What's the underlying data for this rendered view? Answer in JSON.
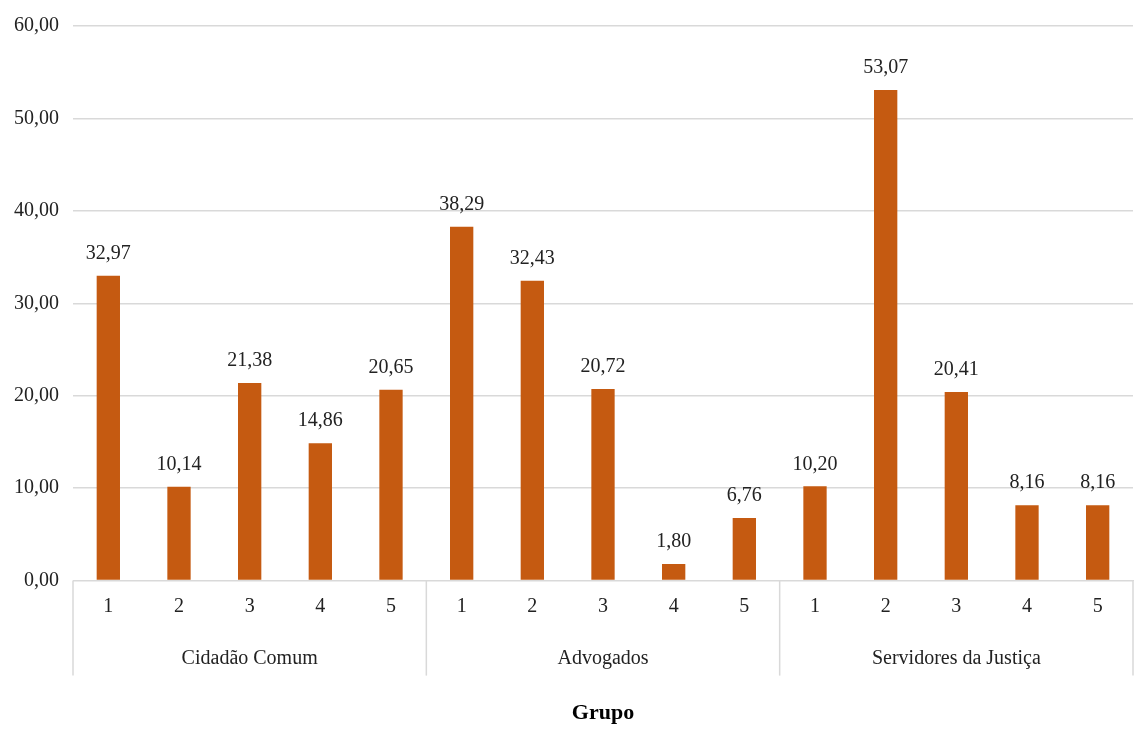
{
  "chart_data": {
    "type": "bar",
    "xlabel": "Grupo",
    "categories": [
      "1",
      "2",
      "3",
      "4",
      "5",
      "1",
      "2",
      "3",
      "4",
      "5",
      "1",
      "2",
      "3",
      "4",
      "5"
    ],
    "values": [
      32.97,
      10.14,
      21.38,
      14.86,
      20.65,
      38.29,
      32.43,
      20.72,
      1.8,
      6.76,
      10.2,
      53.07,
      20.41,
      8.16,
      8.16
    ],
    "value_labels": [
      "32,97",
      "10,14",
      "21,38",
      "14,86",
      "20,65",
      "38,29",
      "32,43",
      "20,72",
      "1,80",
      "6,76",
      "10,20",
      "53,07",
      "20,41",
      "8,16",
      "8,16"
    ],
    "color": "#c55a11",
    "ylim": [
      0,
      60
    ],
    "yticks": [
      {
        "value": 0,
        "label": "0,00"
      },
      {
        "value": 10,
        "label": "10,00"
      },
      {
        "value": 20,
        "label": "20,00"
      },
      {
        "value": 30,
        "label": "30,00"
      },
      {
        "value": 40,
        "label": "40,00"
      },
      {
        "value": 50,
        "label": "50,00"
      },
      {
        "value": 60,
        "label": "60,00"
      }
    ],
    "grid": "y",
    "annotations": [
      "Cidadão Comum",
      "Advogados",
      "Servidores da Justiça"
    ]
  }
}
